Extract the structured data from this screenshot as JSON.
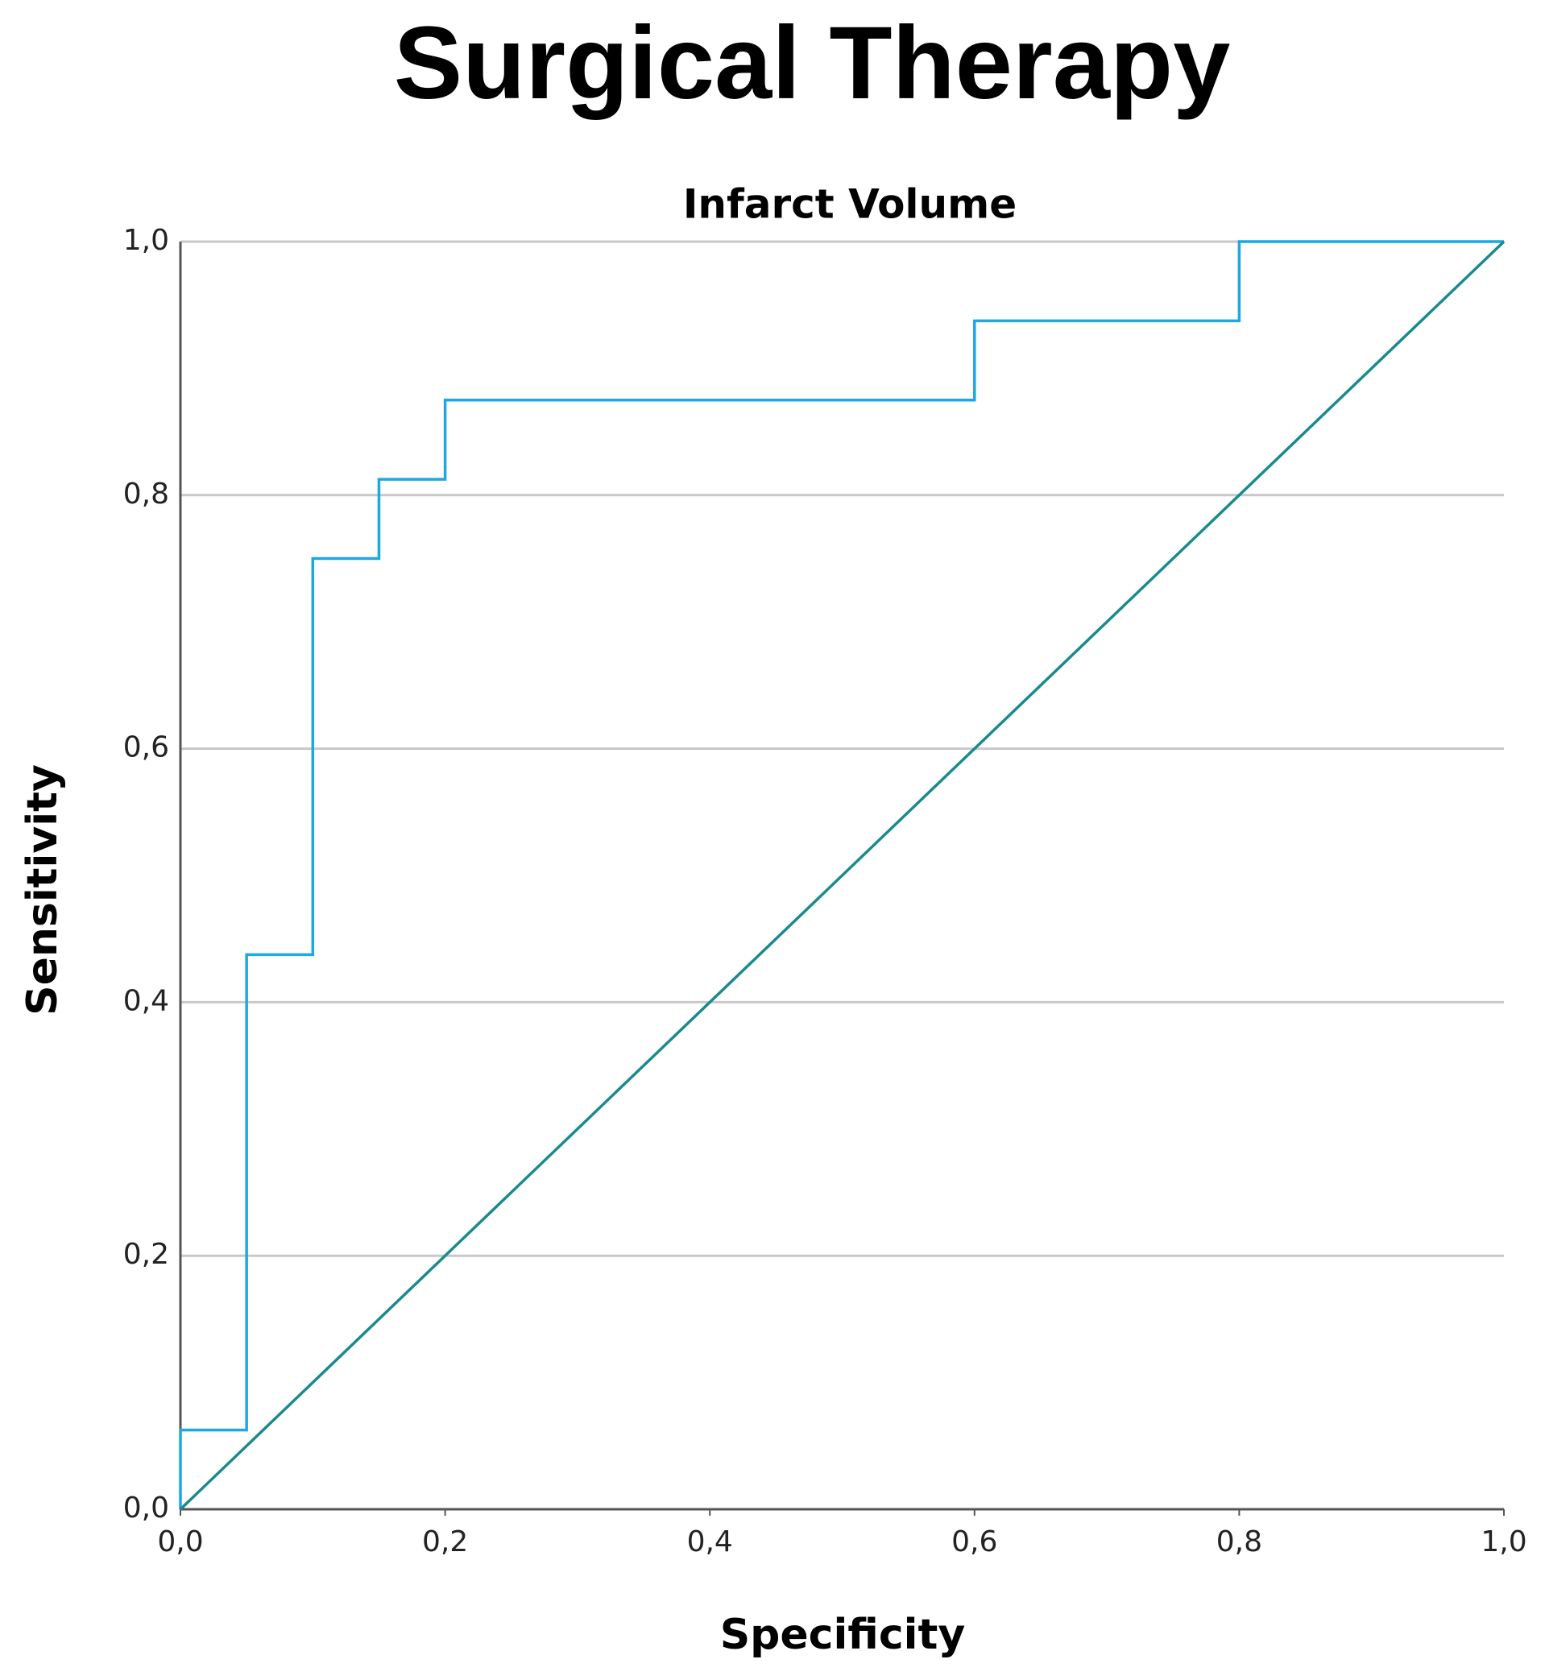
{
  "chart_data": {
    "type": "line",
    "title": "Surgical Therapy",
    "subtitle": "Infarct Volume",
    "xlabel": "Specificity",
    "ylabel": "Sensitivity",
    "xlim": [
      0,
      1
    ],
    "ylim": [
      0,
      1
    ],
    "xticks": [
      {
        "value": 0,
        "label": "0,0"
      },
      {
        "value": 0.2,
        "label": "0,2"
      },
      {
        "value": 0.4,
        "label": "0,4"
      },
      {
        "value": 0.6,
        "label": "0,6"
      },
      {
        "value": 0.8,
        "label": "0,8"
      },
      {
        "value": 1,
        "label": "1,0"
      }
    ],
    "yticks": [
      {
        "value": 0,
        "label": "0,0"
      },
      {
        "value": 0.2,
        "label": "0,2"
      },
      {
        "value": 0.4,
        "label": "0,4"
      },
      {
        "value": 0.6,
        "label": "0,6"
      },
      {
        "value": 0.8,
        "label": "0,8"
      },
      {
        "value": 1,
        "label": "1,0"
      }
    ],
    "grid": true,
    "series": [
      {
        "color": "#1ca8e3",
        "x": [
          0,
          0,
          0.05,
          0.05,
          0.1,
          0.1,
          0.15,
          0.15,
          0.2,
          0.2,
          0.6,
          0.6,
          0.8,
          0.8,
          1
        ],
        "values": [
          0,
          0.0625,
          0.0625,
          0.4375,
          0.4375,
          0.75,
          0.75,
          0.8125,
          0.8125,
          0.875,
          0.875,
          0.9375,
          0.9375,
          1,
          1
        ]
      },
      {
        "color": "#1a8a8f",
        "x": [
          0,
          1
        ],
        "values": [
          0,
          1
        ]
      }
    ]
  }
}
